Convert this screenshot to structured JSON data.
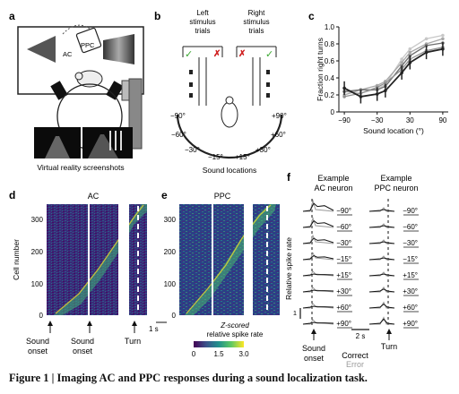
{
  "panels": {
    "a": {
      "letter": "a",
      "ac_label": "AC",
      "ppc_label": "PPC",
      "vr_caption": "Virtual reality screenshots"
    },
    "b": {
      "letter": "b",
      "left_title": [
        "Left",
        "stimulus",
        "trials"
      ],
      "right_title": [
        "Right",
        "stimulus",
        "trials"
      ],
      "check_glyph": "✓",
      "cross_glyph": "✗",
      "locations_left": [
        "−90°",
        "−60°",
        "−30°",
        "−15°"
      ],
      "locations_right": [
        "+90°",
        "+60°",
        "+30°",
        "+15°"
      ],
      "axis_caption": "Sound locations"
    },
    "d": {
      "letter": "d",
      "title": "AC",
      "ylabel": "Cell number",
      "yticks": [
        "0",
        "100",
        "200",
        "300"
      ],
      "scale_label": "1 s"
    },
    "e": {
      "letter": "e",
      "title": "PPC",
      "yticks": [
        "0",
        "100",
        "200",
        "300"
      ],
      "colorbar_label": [
        "Z-scored",
        "relative spike rate"
      ],
      "colorbar_ticks": [
        "0",
        "1.5",
        "3.0"
      ]
    },
    "event_labels": {
      "sound_onset_1": [
        "Sound",
        "onset"
      ],
      "sound_onset_2": [
        "Sound",
        "onset"
      ],
      "turn": "Turn"
    },
    "f": {
      "letter": "f",
      "col1_title": [
        "Example",
        "AC neuron"
      ],
      "col2_title": [
        "Example",
        "PPC neuron"
      ],
      "rows": [
        "−90°",
        "−60°",
        "−30°",
        "−15°",
        "+15°",
        "+30°",
        "+60°",
        "+90°"
      ],
      "ylabel": "Relative spike rate",
      "scale_y": "1",
      "scale_x": "2 s",
      "sound_onset": [
        "Sound",
        "onset"
      ],
      "turn": "Turn",
      "legend_correct": "Correct",
      "legend_error": "Error"
    }
  },
  "caption": "Figure 1 | Imaging AC and PPC responses during a sound localization task.",
  "chart_data": [
    {
      "type": "line",
      "panel": "c",
      "xlabel": "Sound location (°)",
      "ylabel": "Fraction right turns",
      "x": [
        -90,
        -60,
        -30,
        -15,
        15,
        30,
        60,
        90
      ],
      "xticks": [
        "−90",
        "−30",
        "30",
        "90"
      ],
      "yticks": [
        "0",
        "0.2",
        "0.4",
        "0.6",
        "0.8",
        "1.0"
      ],
      "xlim": [
        -100,
        100
      ],
      "ylim": [
        0,
        1.0
      ],
      "series": [
        {
          "values": [
            0.24,
            0.22,
            0.27,
            0.32,
            0.62,
            0.74,
            0.86,
            0.9
          ],
          "color": "#c8c8c8"
        },
        {
          "values": [
            0.2,
            0.26,
            0.31,
            0.36,
            0.58,
            0.7,
            0.8,
            0.86
          ],
          "color": "#a8a8a8"
        },
        {
          "values": [
            0.24,
            0.26,
            0.26,
            0.3,
            0.54,
            0.66,
            0.78,
            0.81
          ],
          "color": "#6e6e6e"
        },
        {
          "values": [
            0.18,
            0.22,
            0.29,
            0.34,
            0.5,
            0.62,
            0.72,
            0.76
          ],
          "color": "#909090"
        },
        {
          "values": [
            0.28,
            0.18,
            0.21,
            0.25,
            0.46,
            0.58,
            0.7,
            0.74
          ],
          "color": "#222222",
          "error": 0.08
        }
      ],
      "grid": false
    }
  ],
  "colors": {
    "viridis_low": "#440154",
    "viridis_mid": "#21918c",
    "viridis_high": "#fde725",
    "check": "#3aa830",
    "cross": "#d02020"
  }
}
